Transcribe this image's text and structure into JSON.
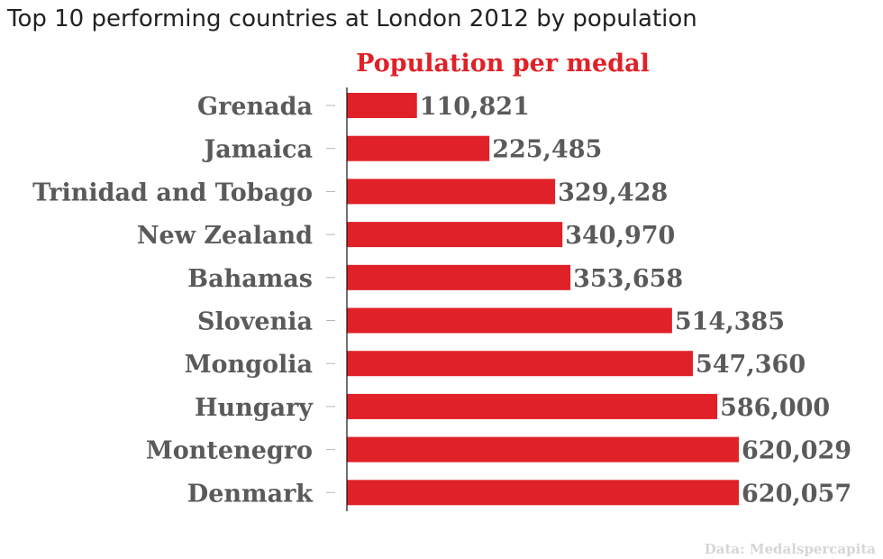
{
  "title": "Top 10 performing countries at London 2012 by population",
  "source": "Data: Medalspercapita",
  "colors": {
    "bar": "#e02128",
    "series_title": "#e02128",
    "label": "#5a5a5a",
    "axis": "#111111",
    "tick": "#b5b5b5",
    "source": "#d6d6d6",
    "title": "#222222"
  },
  "chart_data": {
    "type": "bar",
    "orientation": "horizontal",
    "series_title": "Population per medal",
    "categories": [
      "Grenada",
      "Jamaica",
      "Trinidad and Tobago",
      "New Zealand",
      "Bahamas",
      "Slovenia",
      "Mongolia",
      "Hungary",
      "Montenegro",
      "Denmark"
    ],
    "values": [
      110821,
      225485,
      329428,
      340970,
      353658,
      514385,
      547360,
      586000,
      620029,
      620057
    ],
    "value_labels": [
      "110,821",
      "225,485",
      "329,428",
      "340,970",
      "353,658",
      "514,385",
      "547,360",
      "586,000",
      "620,029",
      "620,057"
    ],
    "xlim": [
      0,
      620057
    ],
    "grid": false,
    "legend": "none"
  }
}
